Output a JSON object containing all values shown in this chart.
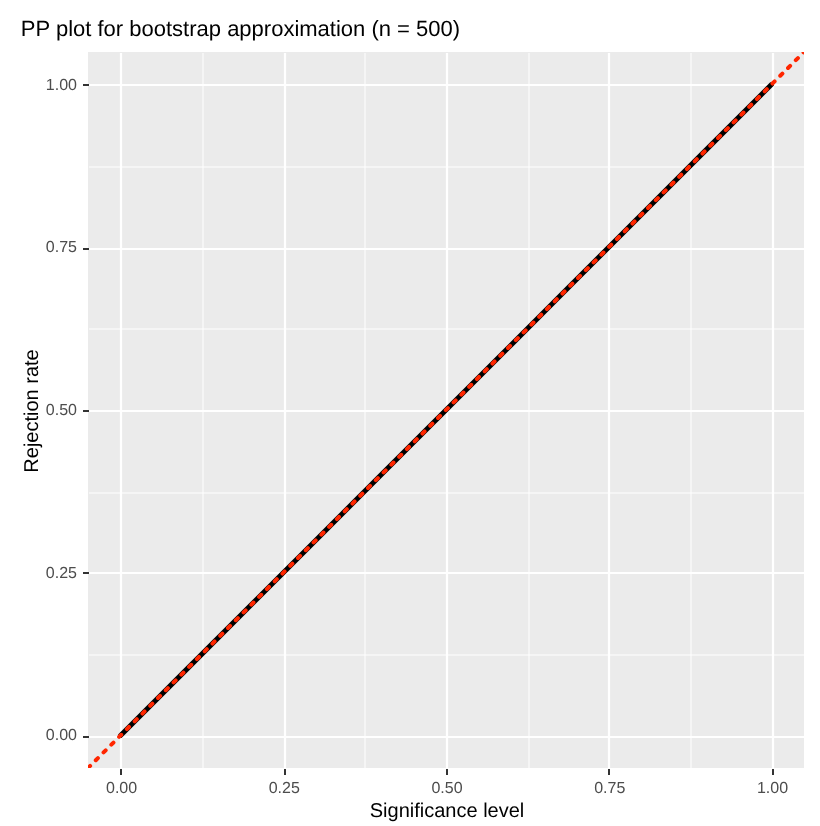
{
  "chart_data": {
    "type": "line",
    "title": "PP plot for bootstrap approximation (n = 500)",
    "xlabel": "Significance level",
    "ylabel": "Rejection rate",
    "xlim": [
      -0.05,
      1.05
    ],
    "ylim": [
      -0.05,
      1.05
    ],
    "xticks": [
      {
        "value": 0,
        "label": "0.00"
      },
      {
        "value": 0.125,
        "label": null
      },
      {
        "value": 0.25,
        "label": "0.25"
      },
      {
        "value": 0.375,
        "label": null
      },
      {
        "value": 0.5,
        "label": "0.50"
      },
      {
        "value": 0.625,
        "label": null
      },
      {
        "value": 0.75,
        "label": "0.75"
      },
      {
        "value": 0.875,
        "label": null
      },
      {
        "value": 1,
        "label": "1.00"
      }
    ],
    "yticks": [
      {
        "value": 0,
        "label": "0.00"
      },
      {
        "value": 0.125,
        "label": null
      },
      {
        "value": 0.25,
        "label": "0.25"
      },
      {
        "value": 0.375,
        "label": null
      },
      {
        "value": 0.5,
        "label": "0.50"
      },
      {
        "value": 0.625,
        "label": null
      },
      {
        "value": 0.75,
        "label": "0.75"
      },
      {
        "value": 0.875,
        "label": null
      },
      {
        "value": 1,
        "label": "1.00"
      }
    ],
    "grid": true,
    "series": [
      {
        "color": "#000000",
        "line_style": "solid",
        "x": [
          0,
          0.1,
          0.2,
          0.3,
          0.4,
          0.5,
          0.6,
          0.7,
          0.8,
          0.9,
          1
        ],
        "values": [
          0,
          0.1,
          0.2,
          0.3,
          0.4,
          0.5,
          0.6,
          0.7,
          0.8,
          0.9,
          1
        ]
      },
      {
        "color": "#ff2600",
        "line_style": "dotted",
        "x": [
          -0.05,
          1.05
        ],
        "values": [
          -0.05,
          1.05
        ]
      }
    ]
  }
}
